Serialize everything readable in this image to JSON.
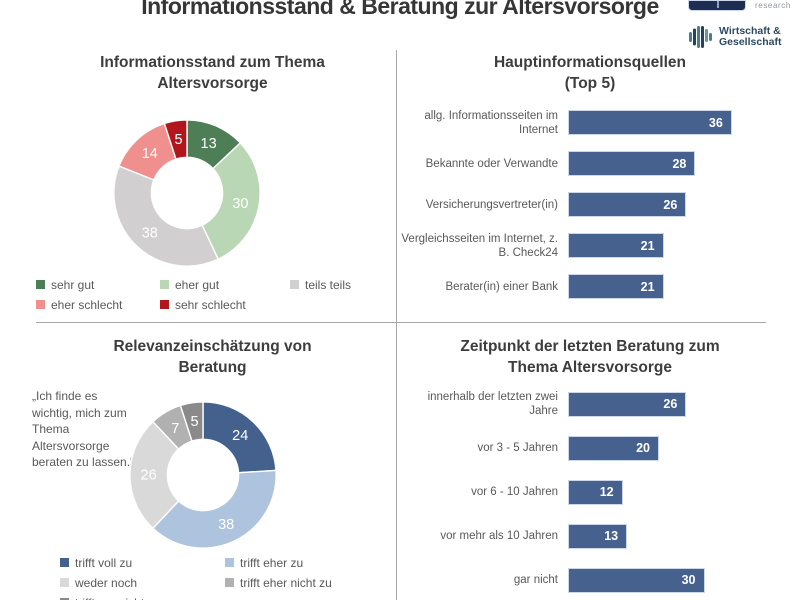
{
  "page": {
    "title": "Informationsstand & Beratung zur Altersvorsorge",
    "logos": {
      "research": "research",
      "wg_line1": "Wirtschaft &",
      "wg_line2": "Gesellschaft"
    }
  },
  "colors": {
    "bar_blue": "#47618f",
    "divider_gray": "#a8a8a8",
    "title_gray": "#3d3d3d",
    "text_gray": "#595959"
  },
  "chart_data": [
    {
      "id": "informationsstand",
      "type": "pie",
      "subtype": "donut",
      "title": "Informationsstand zum Thema Altersvorsorge",
      "title_lines": [
        "Informationsstand zum Thema",
        "Altersvorsorge"
      ],
      "labels": [
        "sehr gut",
        "eher gut",
        "teils teils",
        "eher schlecht",
        "sehr schlecht"
      ],
      "values": [
        13,
        30,
        38,
        14,
        5
      ],
      "colors": [
        "#4e7e55",
        "#b9d6b5",
        "#d1cfcf",
        "#f0908e",
        "#b2161d"
      ],
      "legend_position": "bottom",
      "unit": "percent"
    },
    {
      "id": "hauptinformationsquellen",
      "type": "bar",
      "orientation": "horizontal",
      "title": "Hauptinformationsquellen (Top 5)",
      "title_lines": [
        "Hauptinformationsquellen",
        "(Top 5)"
      ],
      "categories": [
        "allg. Informationsseiten im Internet",
        "Bekannte oder Verwandte",
        "Versicherungsvertreter(in)",
        "Vergleichsseiten im Internet, z. B. Check24",
        "Berater(in) einer Bank"
      ],
      "values": [
        36,
        28,
        26,
        21,
        21
      ],
      "bar_color": "#47618f",
      "xlim": [
        0,
        40
      ],
      "value_labels": "inside-end",
      "unit": "percent"
    },
    {
      "id": "relevanzeinschaetzung",
      "type": "pie",
      "subtype": "donut",
      "title": "Relevanzeinschätzung von Beratung",
      "title_lines": [
        "Relevanzeinschätzung von",
        "Beratung"
      ],
      "annotation": "„Ich finde es wichtig, mich zum Thema Altersvorsorge beraten zu lassen.“",
      "labels": [
        "trifft voll zu",
        "trifft eher zu",
        "weder noch",
        "trifft eher nicht zu",
        "trifft gar nicht zu"
      ],
      "values": [
        24,
        38,
        26,
        7,
        5
      ],
      "colors": [
        "#44618e",
        "#aec3de",
        "#d9d9d9",
        "#b1b1b1",
        "#8a8a8a"
      ],
      "legend_position": "bottom",
      "unit": "percent"
    },
    {
      "id": "zeitpunkt_beratung",
      "type": "bar",
      "orientation": "horizontal",
      "title": "Zeitpunkt der letzten Beratung zum Thema Altersvorsorge",
      "title_lines": [
        "Zeitpunkt der letzten Beratung zum",
        "Thema Altersvorsorge"
      ],
      "categories": [
        "innerhalb der letzten zwei Jahre",
        "vor 3 - 5 Jahren",
        "vor 6 - 10 Jahren",
        "vor mehr als 10 Jahren",
        "gar nicht"
      ],
      "values": [
        26,
        20,
        12,
        13,
        30
      ],
      "bar_color": "#47618f",
      "xlim": [
        0,
        40
      ],
      "value_labels": "inside-end",
      "unit": "percent"
    }
  ]
}
